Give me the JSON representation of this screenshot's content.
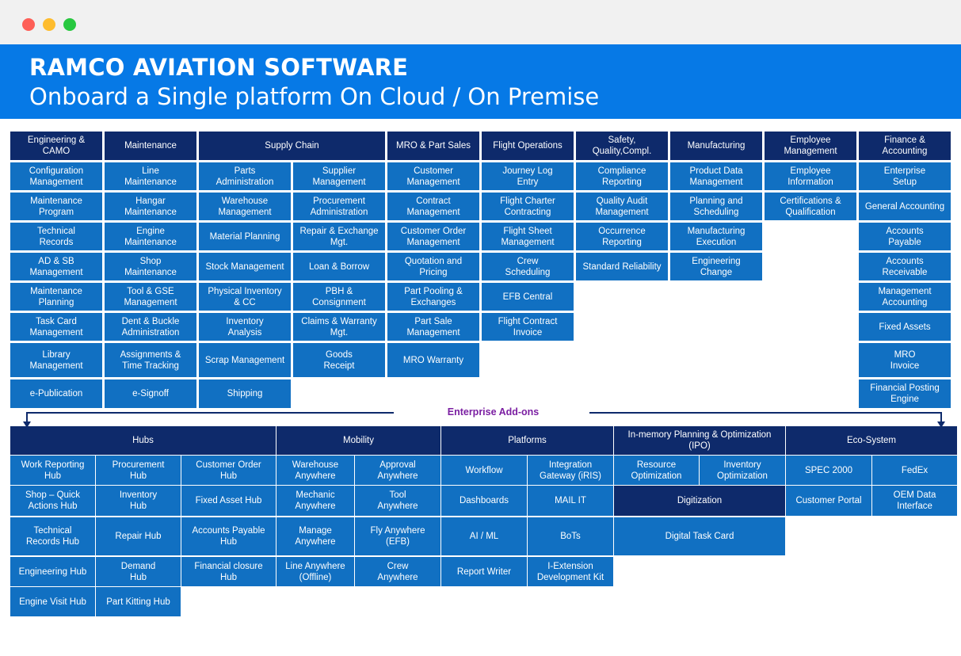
{
  "window": {
    "close_color": "#fe5f57",
    "minimize_color": "#febc2e",
    "maximize_color": "#28c840"
  },
  "banner": {
    "title": "RAMCO AVIATION SOFTWARE",
    "subtitle": "Onboard a Single platform On Cloud / On Premise"
  },
  "colors": {
    "banner_blue": "#0679e6",
    "header_navy": "#0e2a6b",
    "module_blue": "#1170c2",
    "addons_purple": "#7b1fa2"
  },
  "core": {
    "categories": [
      {
        "title": "Engineering &\nCAMO",
        "items": [
          "Configuration\nManagement",
          "Maintenance\nProgram",
          "Technical\nRecords",
          "AD & SB\nManagement",
          "Maintenance\nPlanning",
          "Task Card\nManagement",
          "Library\nManagement",
          "e-Publication"
        ]
      },
      {
        "title": "Maintenance",
        "items": [
          "Line\nMaintenance",
          "Hangar\nMaintenance",
          "Engine\nMaintenance",
          "Shop\nMaintenance",
          "Tool & GSE\nManagement",
          "Dent & Buckle\nAdministration",
          "Assignments &\nTime Tracking",
          "e-Signoff"
        ]
      },
      {
        "title": "Supply Chain",
        "items": [
          "Parts\nAdministration",
          "Warehouse\nManagement",
          "Material Planning",
          "Stock Management",
          "Physical Inventory\n& CC",
          "Inventory\nAnalysis",
          "Scrap Management",
          "Shipping",
          "Supplier\nManagement",
          "Procurement\nAdministration",
          "Repair & Exchange\nMgt.",
          "Loan & Borrow",
          "PBH &\nConsignment",
          "Claims & Warranty\nMgt.",
          "Goods\nReceipt"
        ]
      },
      {
        "title": "MRO & Part Sales",
        "items": [
          "Customer\nManagement",
          "Contract\nManagement",
          "Customer Order\nManagement",
          "Quotation and\nPricing",
          "Part Pooling &\nExchanges",
          "Part Sale\nManagement",
          "MRO Warranty"
        ]
      },
      {
        "title": "Flight Operations",
        "items": [
          "Journey Log\nEntry",
          "Flight Charter\nContracting",
          "Flight Sheet\nManagement",
          "Crew\nScheduling",
          "EFB Central",
          "Flight Contract\nInvoice"
        ]
      },
      {
        "title": "Safety,\nQuality,Compl.",
        "items": [
          "Compliance\nReporting",
          "Quality Audit\nManagement",
          "Occurrence\nReporting",
          "Standard Reliability"
        ]
      },
      {
        "title": "Manufacturing",
        "items": [
          "Product Data\nManagement",
          "Planning and\nScheduling",
          "Manufacturing\nExecution",
          "Engineering\nChange"
        ]
      },
      {
        "title": "Employee\nManagement",
        "items": [
          "Employee\nInformation",
          "Certifications &\nQualification"
        ]
      },
      {
        "title": "Finance &\nAccounting",
        "items": [
          "Enterprise\nSetup",
          "General Accounting",
          "Accounts\nPayable",
          "Accounts\nReceivable",
          "Management\nAccounting",
          "Fixed Assets",
          "MRO\nInvoice",
          "Financial Posting\nEngine"
        ]
      }
    ]
  },
  "addons": {
    "label": "Enterprise Add-ons",
    "groups": [
      {
        "title": "Hubs",
        "items": [
          "Work Reporting\nHub",
          "Shop – Quick\nActions Hub",
          "Technical\nRecords Hub",
          "Engineering Hub",
          "Engine Visit Hub",
          "Procurement\nHub",
          "Inventory\nHub",
          "Repair Hub",
          "Demand\nHub",
          "Part Kitting Hub",
          "Customer Order\nHub",
          "Fixed Asset Hub",
          "Accounts Payable\nHub",
          "Financial closure\nHub"
        ]
      },
      {
        "title": "Mobility",
        "items": [
          "Warehouse\nAnywhere",
          "Mechanic\nAnywhere",
          "Manage\nAnywhere",
          "Line Anywhere\n(Offline)",
          "Approval\nAnywhere",
          "Tool\nAnywhere",
          "Fly Anywhere\n(EFB)",
          "Crew\nAnywhere"
        ]
      },
      {
        "title": "Platforms",
        "items": [
          "Workflow",
          "Dashboards",
          "AI / ML",
          "Report Writer",
          "Integration\nGateway (iRIS)",
          "MAIL IT",
          "BoTs",
          "I-Extension\nDevelopment Kit"
        ]
      },
      {
        "title": "In-memory Planning & Optimization\n(IPO)",
        "items": [
          "Resource\nOptimization",
          "Inventory\nOptimization"
        ]
      },
      {
        "title": "Digitization",
        "items": [
          "Digital Task Card"
        ]
      },
      {
        "title": "Eco-System",
        "items": [
          "SPEC 2000",
          "Customer Portal",
          "FedEx",
          "OEM Data\nInterface"
        ]
      }
    ]
  }
}
